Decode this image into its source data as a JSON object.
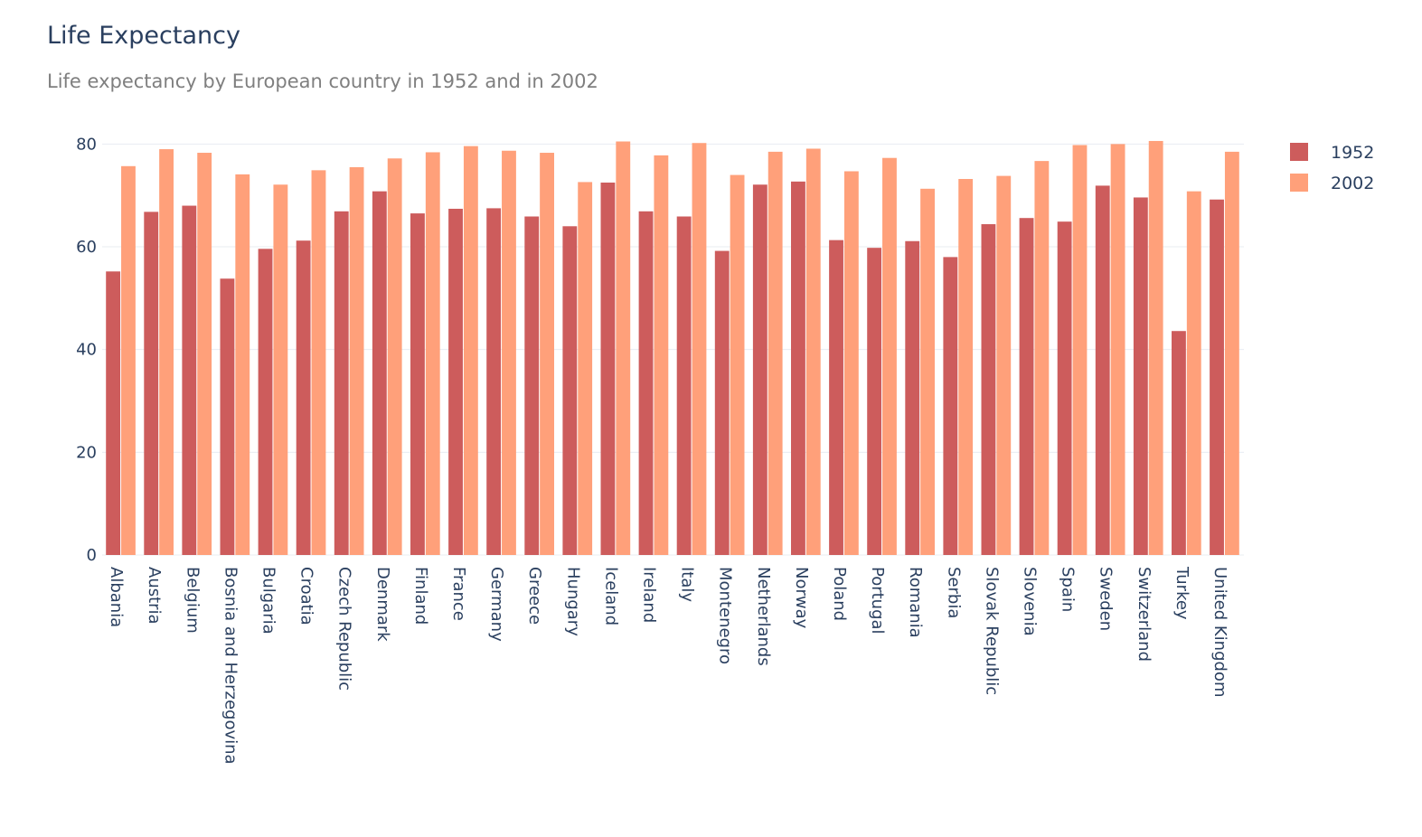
{
  "chart_data": {
    "type": "bar",
    "title": "Life Expectancy",
    "subtitle": "Life expectancy by European country in 1952 and in 2002",
    "xlabel": "",
    "ylabel": "",
    "ylim": [
      0,
      82
    ],
    "yticks": [
      0,
      20,
      40,
      60,
      80
    ],
    "grid": true,
    "legend_position": "top-right",
    "categories": [
      "Albania",
      "Austria",
      "Belgium",
      "Bosnia and Herzegovina",
      "Bulgaria",
      "Croatia",
      "Czech Republic",
      "Denmark",
      "Finland",
      "France",
      "Germany",
      "Greece",
      "Hungary",
      "Iceland",
      "Ireland",
      "Italy",
      "Montenegro",
      "Netherlands",
      "Norway",
      "Poland",
      "Portugal",
      "Romania",
      "Serbia",
      "Slovak Republic",
      "Slovenia",
      "Spain",
      "Sweden",
      "Switzerland",
      "Turkey",
      "United Kingdom"
    ],
    "series": [
      {
        "name": "1952",
        "color": "#cd5c5c",
        "values": [
          55.2,
          66.8,
          68.0,
          53.8,
          59.6,
          61.2,
          66.9,
          70.8,
          66.5,
          67.4,
          67.5,
          65.9,
          64.0,
          72.5,
          66.9,
          65.9,
          59.2,
          72.1,
          72.7,
          61.3,
          59.8,
          61.1,
          58.0,
          64.4,
          65.6,
          64.9,
          71.9,
          69.6,
          43.6,
          69.2
        ]
      },
      {
        "name": "2002",
        "color": "#ffa07a",
        "values": [
          75.7,
          79.0,
          78.3,
          74.1,
          72.1,
          74.9,
          75.5,
          77.2,
          78.4,
          79.6,
          78.7,
          78.3,
          72.6,
          80.5,
          77.8,
          80.2,
          73.98,
          78.5,
          79.1,
          74.7,
          77.3,
          71.3,
          73.2,
          73.8,
          76.7,
          79.8,
          80.0,
          80.6,
          70.8,
          78.5
        ]
      }
    ]
  }
}
